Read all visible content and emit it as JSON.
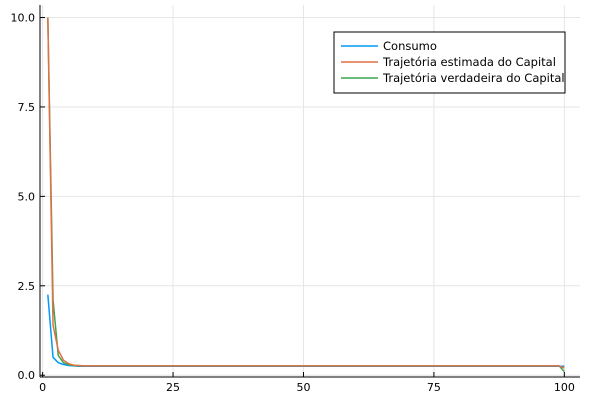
{
  "chart_data": {
    "type": "line",
    "title": "",
    "xlabel": "",
    "ylabel": "",
    "xlim": [
      -0.5,
      103
    ],
    "ylim": [
      -0.05,
      10.35
    ],
    "xticks": [
      0,
      25,
      50,
      75,
      100
    ],
    "yticks": [
      0.0,
      2.5,
      5.0,
      7.5,
      10.0
    ],
    "xtick_labels": [
      "0",
      "25",
      "50",
      "75",
      "100"
    ],
    "ytick_labels": [
      "0.0",
      "2.5",
      "5.0",
      "7.5",
      "10.0"
    ],
    "grid": true,
    "legend_position": "top-right",
    "series": [
      {
        "name": "Consumo",
        "color": "#009AFA",
        "x": [
          1,
          2,
          3,
          4,
          5,
          6,
          7,
          8,
          10,
          15,
          20,
          30,
          40,
          50,
          60,
          70,
          80,
          90,
          99,
          100
        ],
        "y": [
          2.25,
          0.5,
          0.35,
          0.3,
          0.27,
          0.26,
          0.25,
          0.25,
          0.25,
          0.25,
          0.25,
          0.25,
          0.25,
          0.25,
          0.25,
          0.25,
          0.25,
          0.25,
          0.25,
          0.25
        ]
      },
      {
        "name": "Trajetória estimada do Capital",
        "color": "#E36F47",
        "x": [
          1,
          2,
          3,
          4,
          5,
          6,
          7,
          8,
          10,
          15,
          20,
          30,
          40,
          50,
          60,
          70,
          80,
          90,
          99,
          100
        ],
        "y": [
          10.0,
          1.4,
          0.7,
          0.42,
          0.32,
          0.28,
          0.27,
          0.26,
          0.26,
          0.26,
          0.26,
          0.26,
          0.26,
          0.26,
          0.26,
          0.26,
          0.26,
          0.26,
          0.26,
          0.2
        ]
      },
      {
        "name": "Trajetória verdadeira do Capital",
        "color": "#3EA44E",
        "x": [
          1,
          2,
          3,
          4,
          5,
          6,
          7,
          8,
          10,
          15,
          20,
          30,
          40,
          50,
          60,
          70,
          80,
          90,
          99,
          100
        ],
        "y": [
          10.0,
          2.1,
          0.55,
          0.35,
          0.29,
          0.27,
          0.26,
          0.26,
          0.26,
          0.26,
          0.26,
          0.26,
          0.26,
          0.26,
          0.26,
          0.26,
          0.26,
          0.26,
          0.26,
          0.1
        ]
      }
    ]
  }
}
